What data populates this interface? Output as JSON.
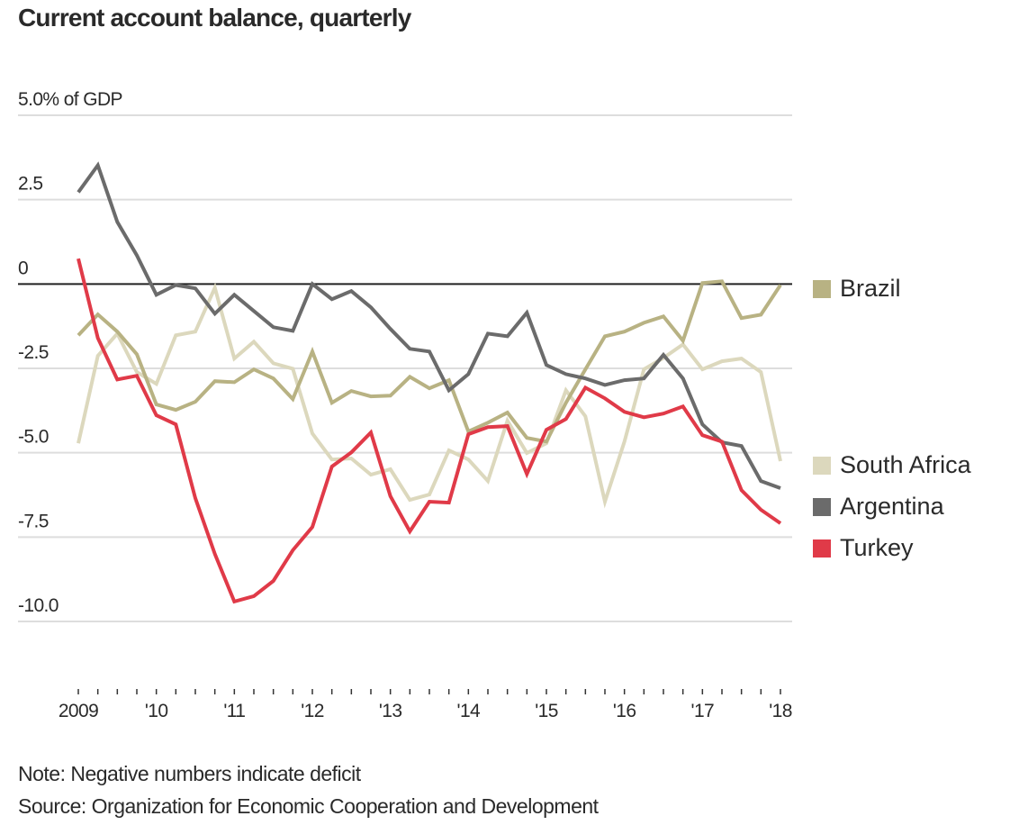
{
  "chart_data": {
    "type": "line",
    "title": "Current account balance, quarterly",
    "ylabel": "% of GDP",
    "xlabel": "",
    "ylim": [
      -10,
      5
    ],
    "yticks": [
      {
        "value": 5,
        "label": "5.0% of GDP"
      },
      {
        "value": 2.5,
        "label": "2.5"
      },
      {
        "value": 0,
        "label": "0"
      },
      {
        "value": -2.5,
        "label": "-2.5"
      },
      {
        "value": -5,
        "label": "-5.0"
      },
      {
        "value": -7.5,
        "label": "-7.5"
      },
      {
        "value": -10,
        "label": "-10.0"
      }
    ],
    "xlim": [
      2009.0,
      2018.0
    ],
    "xticks": [
      {
        "value": 2009,
        "label": "2009"
      },
      {
        "value": 2010,
        "label": "'10"
      },
      {
        "value": 2011,
        "label": "'11"
      },
      {
        "value": 2012,
        "label": "'12"
      },
      {
        "value": 2013,
        "label": "'13"
      },
      {
        "value": 2014,
        "label": "'14"
      },
      {
        "value": 2015,
        "label": "'15"
      },
      {
        "value": 2016,
        "label": "'16"
      },
      {
        "value": 2017,
        "label": "'17"
      },
      {
        "value": 2018,
        "label": "'18"
      }
    ],
    "x_start": 2009.0,
    "x_step": 0.25,
    "grid": true,
    "legend_position": "right",
    "series": [
      {
        "name": "Brazil",
        "color": "#b8b283",
        "values": [
          -1.52,
          -0.9,
          -1.41,
          -2.08,
          -3.57,
          -3.73,
          -3.49,
          -2.88,
          -2.91,
          -2.53,
          -2.8,
          -3.41,
          -2.0,
          -3.52,
          -3.17,
          -3.33,
          -3.31,
          -2.75,
          -3.09,
          -2.85,
          -4.37,
          -4.11,
          -3.81,
          -4.56,
          -4.67,
          -3.52,
          -2.53,
          -1.55,
          -1.41,
          -1.15,
          -0.96,
          -1.68,
          0.03,
          0.08,
          -1.01,
          -0.91,
          -0.03
        ]
      },
      {
        "name": "South Africa",
        "color": "#dcd8bd",
        "values": [
          -4.72,
          -2.13,
          -1.47,
          -2.61,
          -2.96,
          -1.52,
          -1.41,
          -0.11,
          -2.21,
          -1.71,
          -2.35,
          -2.51,
          -4.43,
          -5.2,
          -5.17,
          -5.65,
          -5.49,
          -6.4,
          -6.24,
          -4.93,
          -5.2,
          -5.84,
          -4.05,
          -5.01,
          -4.72,
          -3.15,
          -3.92,
          -6.45,
          -4.67,
          -2.53,
          -2.19,
          -1.79,
          -2.53,
          -2.29,
          -2.21,
          -2.61,
          -5.25
        ]
      },
      {
        "name": "Argentina",
        "color": "#6b6b6b",
        "values": [
          2.72,
          3.52,
          1.84,
          0.85,
          -0.32,
          -0.03,
          -0.13,
          -0.88,
          -0.32,
          -0.8,
          -1.28,
          -1.39,
          0.0,
          -0.45,
          -0.21,
          -0.69,
          -1.33,
          -1.92,
          -2.0,
          -3.15,
          -2.67,
          -1.47,
          -1.55,
          -0.85,
          -2.4,
          -2.67,
          -2.8,
          -2.99,
          -2.85,
          -2.8,
          -2.1,
          -2.8,
          -4.16,
          -4.69,
          -4.8,
          -5.84,
          -6.05
        ]
      },
      {
        "name": "Turkey",
        "color": "#e03a48",
        "values": [
          0.75,
          -1.6,
          -2.83,
          -2.72,
          -3.89,
          -4.16,
          -6.35,
          -8.0,
          -9.41,
          -9.25,
          -8.8,
          -7.89,
          -7.2,
          -5.41,
          -4.99,
          -4.4,
          -6.29,
          -7.33,
          -6.45,
          -6.48,
          -4.45,
          -4.24,
          -4.21,
          -5.63,
          -4.32,
          -4.0,
          -3.07,
          -3.39,
          -3.79,
          -3.95,
          -3.84,
          -3.63,
          -4.48,
          -4.67,
          -6.11,
          -6.69,
          -7.09
        ]
      }
    ],
    "legend": [
      {
        "name": "Brazil",
        "color": "#b8b283"
      },
      {
        "name": "South Africa",
        "color": "#dcd8bd"
      },
      {
        "name": "Argentina",
        "color": "#6b6b6b"
      },
      {
        "name": "Turkey",
        "color": "#e03a48"
      }
    ],
    "note": "Note: Negative numbers indicate deficit",
    "source": "Source: Organization for Economic Cooperation and Development"
  }
}
